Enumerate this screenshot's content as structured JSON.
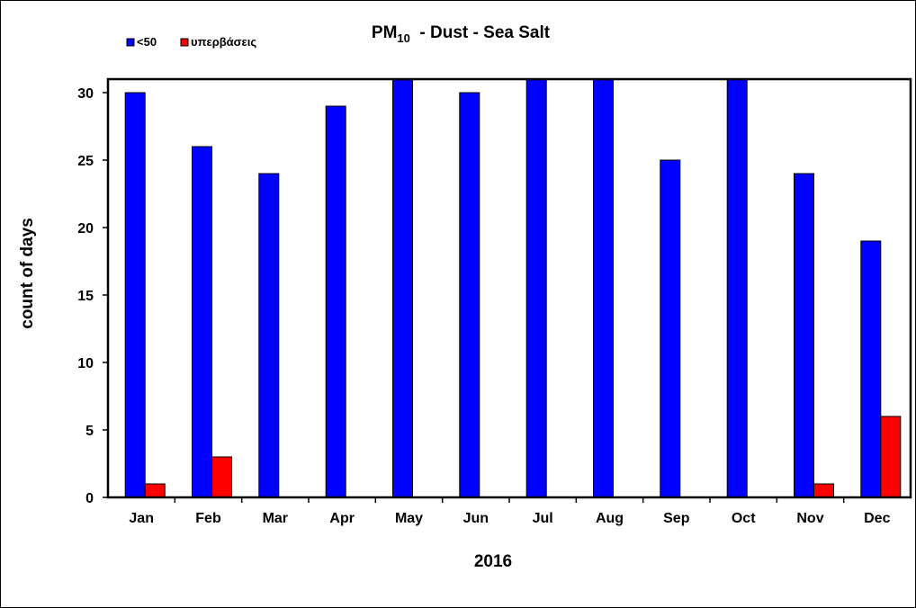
{
  "chart_data": {
    "type": "bar",
    "title": {
      "main": "PM",
      "subscript": "10",
      "rest": "  - Dust - Sea Salt"
    },
    "xlabel": "2016",
    "ylabel": "count of days",
    "categories": [
      "Jan",
      "Feb",
      "Mar",
      "Apr",
      "May",
      "Jun",
      "Jul",
      "Aug",
      "Sep",
      "Oct",
      "Nov",
      "Dec"
    ],
    "series": [
      {
        "name": "<50",
        "color": "#0000ff",
        "values": [
          30,
          26,
          24,
          29,
          31,
          30,
          31,
          31,
          25,
          31,
          24,
          19
        ]
      },
      {
        "name": "υπερβάσεις",
        "color": "#ff0000",
        "values": [
          1,
          3,
          0,
          0,
          0,
          0,
          0,
          0,
          0,
          0,
          1,
          6
        ]
      }
    ],
    "ylim": [
      0,
      30
    ],
    "yticks": [
      0,
      5,
      10,
      15,
      20,
      25,
      30
    ],
    "grid": false,
    "legend_position": "top-left"
  }
}
